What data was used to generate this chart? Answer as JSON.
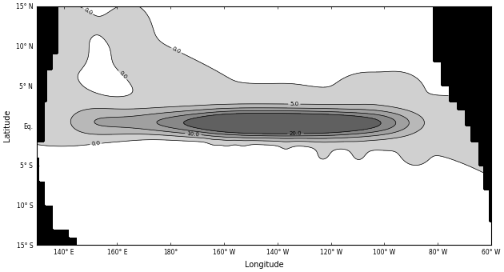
{
  "lon_min": 130,
  "lon_max": 300,
  "lat_min": -15,
  "lat_max": 15,
  "xlabel": "Longitude",
  "ylabel": "Latitude",
  "xtick_vals": [
    140,
    160,
    180,
    200,
    220,
    240,
    260,
    280,
    300
  ],
  "xtick_labels": [
    "140° E",
    "160° E",
    "180°",
    "160° W",
    "140° W",
    "120° W",
    "100° W",
    "80° W",
    "60° W"
  ],
  "ytick_vals": [
    -15,
    -10,
    -5,
    0,
    5,
    10,
    15
  ],
  "ytick_labels": [
    "15° S",
    "10° S",
    "5° S",
    "Eq.",
    "5° N",
    "10° N",
    "15° N"
  ],
  "land_color": "#000000",
  "bg_color": "#c8c8c8",
  "contour_line_color": "#000000"
}
